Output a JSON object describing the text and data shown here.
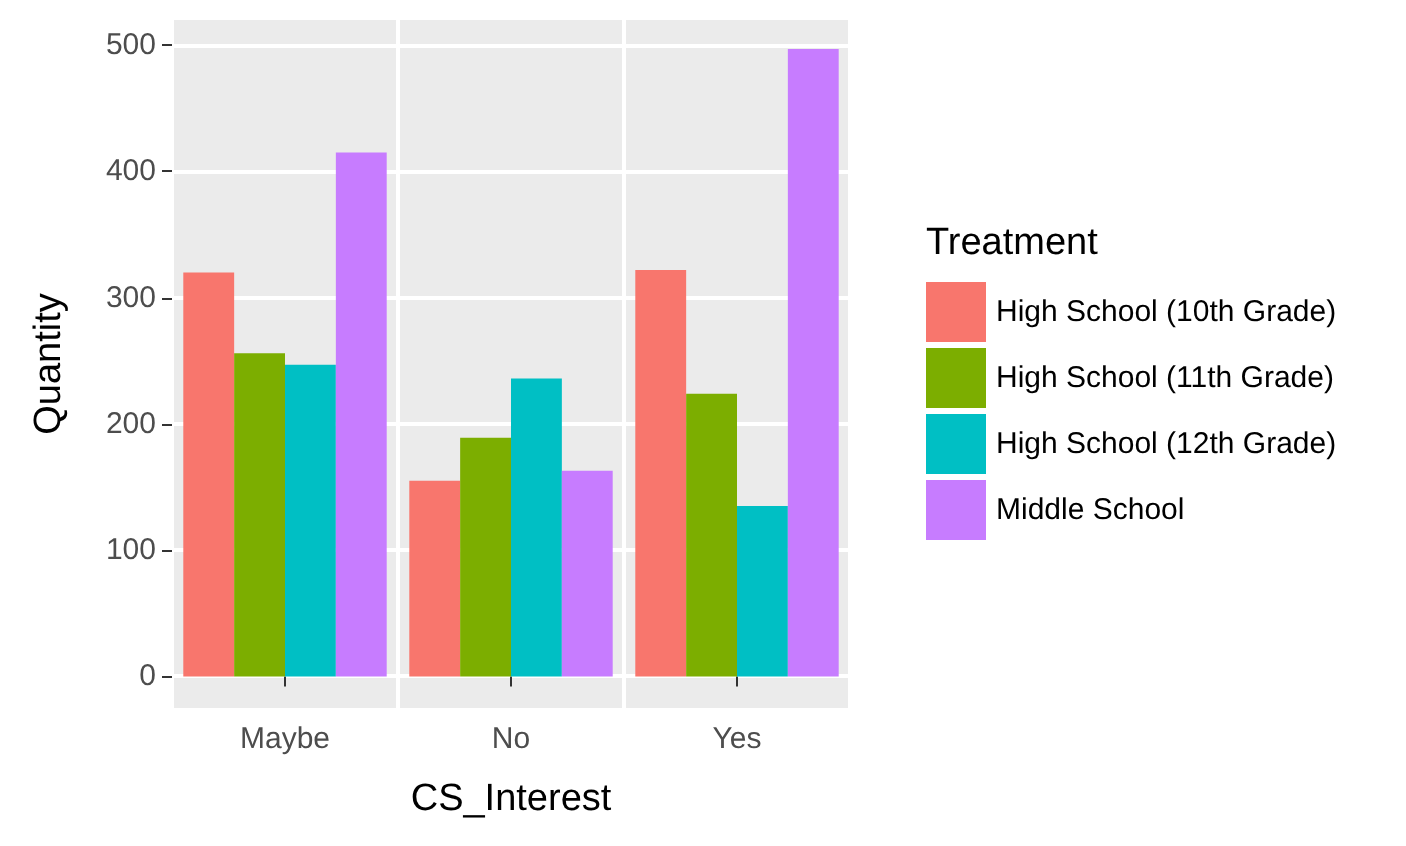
{
  "chart_data": {
    "type": "bar",
    "xlabel": "CS_Interest",
    "ylabel": "Quantity",
    "legend_title": "Treatment",
    "categories": [
      "Maybe",
      "No",
      "Yes"
    ],
    "series": [
      {
        "name": "High School (10th Grade)",
        "color": "#f8766d",
        "values": [
          320,
          155,
          322
        ]
      },
      {
        "name": "High School (11th Grade)",
        "color": "#7cae00",
        "values": [
          256,
          189,
          224
        ]
      },
      {
        "name": "High School (12th Grade)",
        "color": "#00bfc4",
        "values": [
          247,
          236,
          135
        ]
      },
      {
        "name": "Middle School",
        "color": "#c77cff",
        "values": [
          415,
          163,
          497
        ]
      }
    ],
    "ylim": [
      -25,
      520
    ],
    "yticks": [
      0,
      100,
      200,
      300,
      400,
      500
    ],
    "grid": true,
    "legend": "right"
  }
}
